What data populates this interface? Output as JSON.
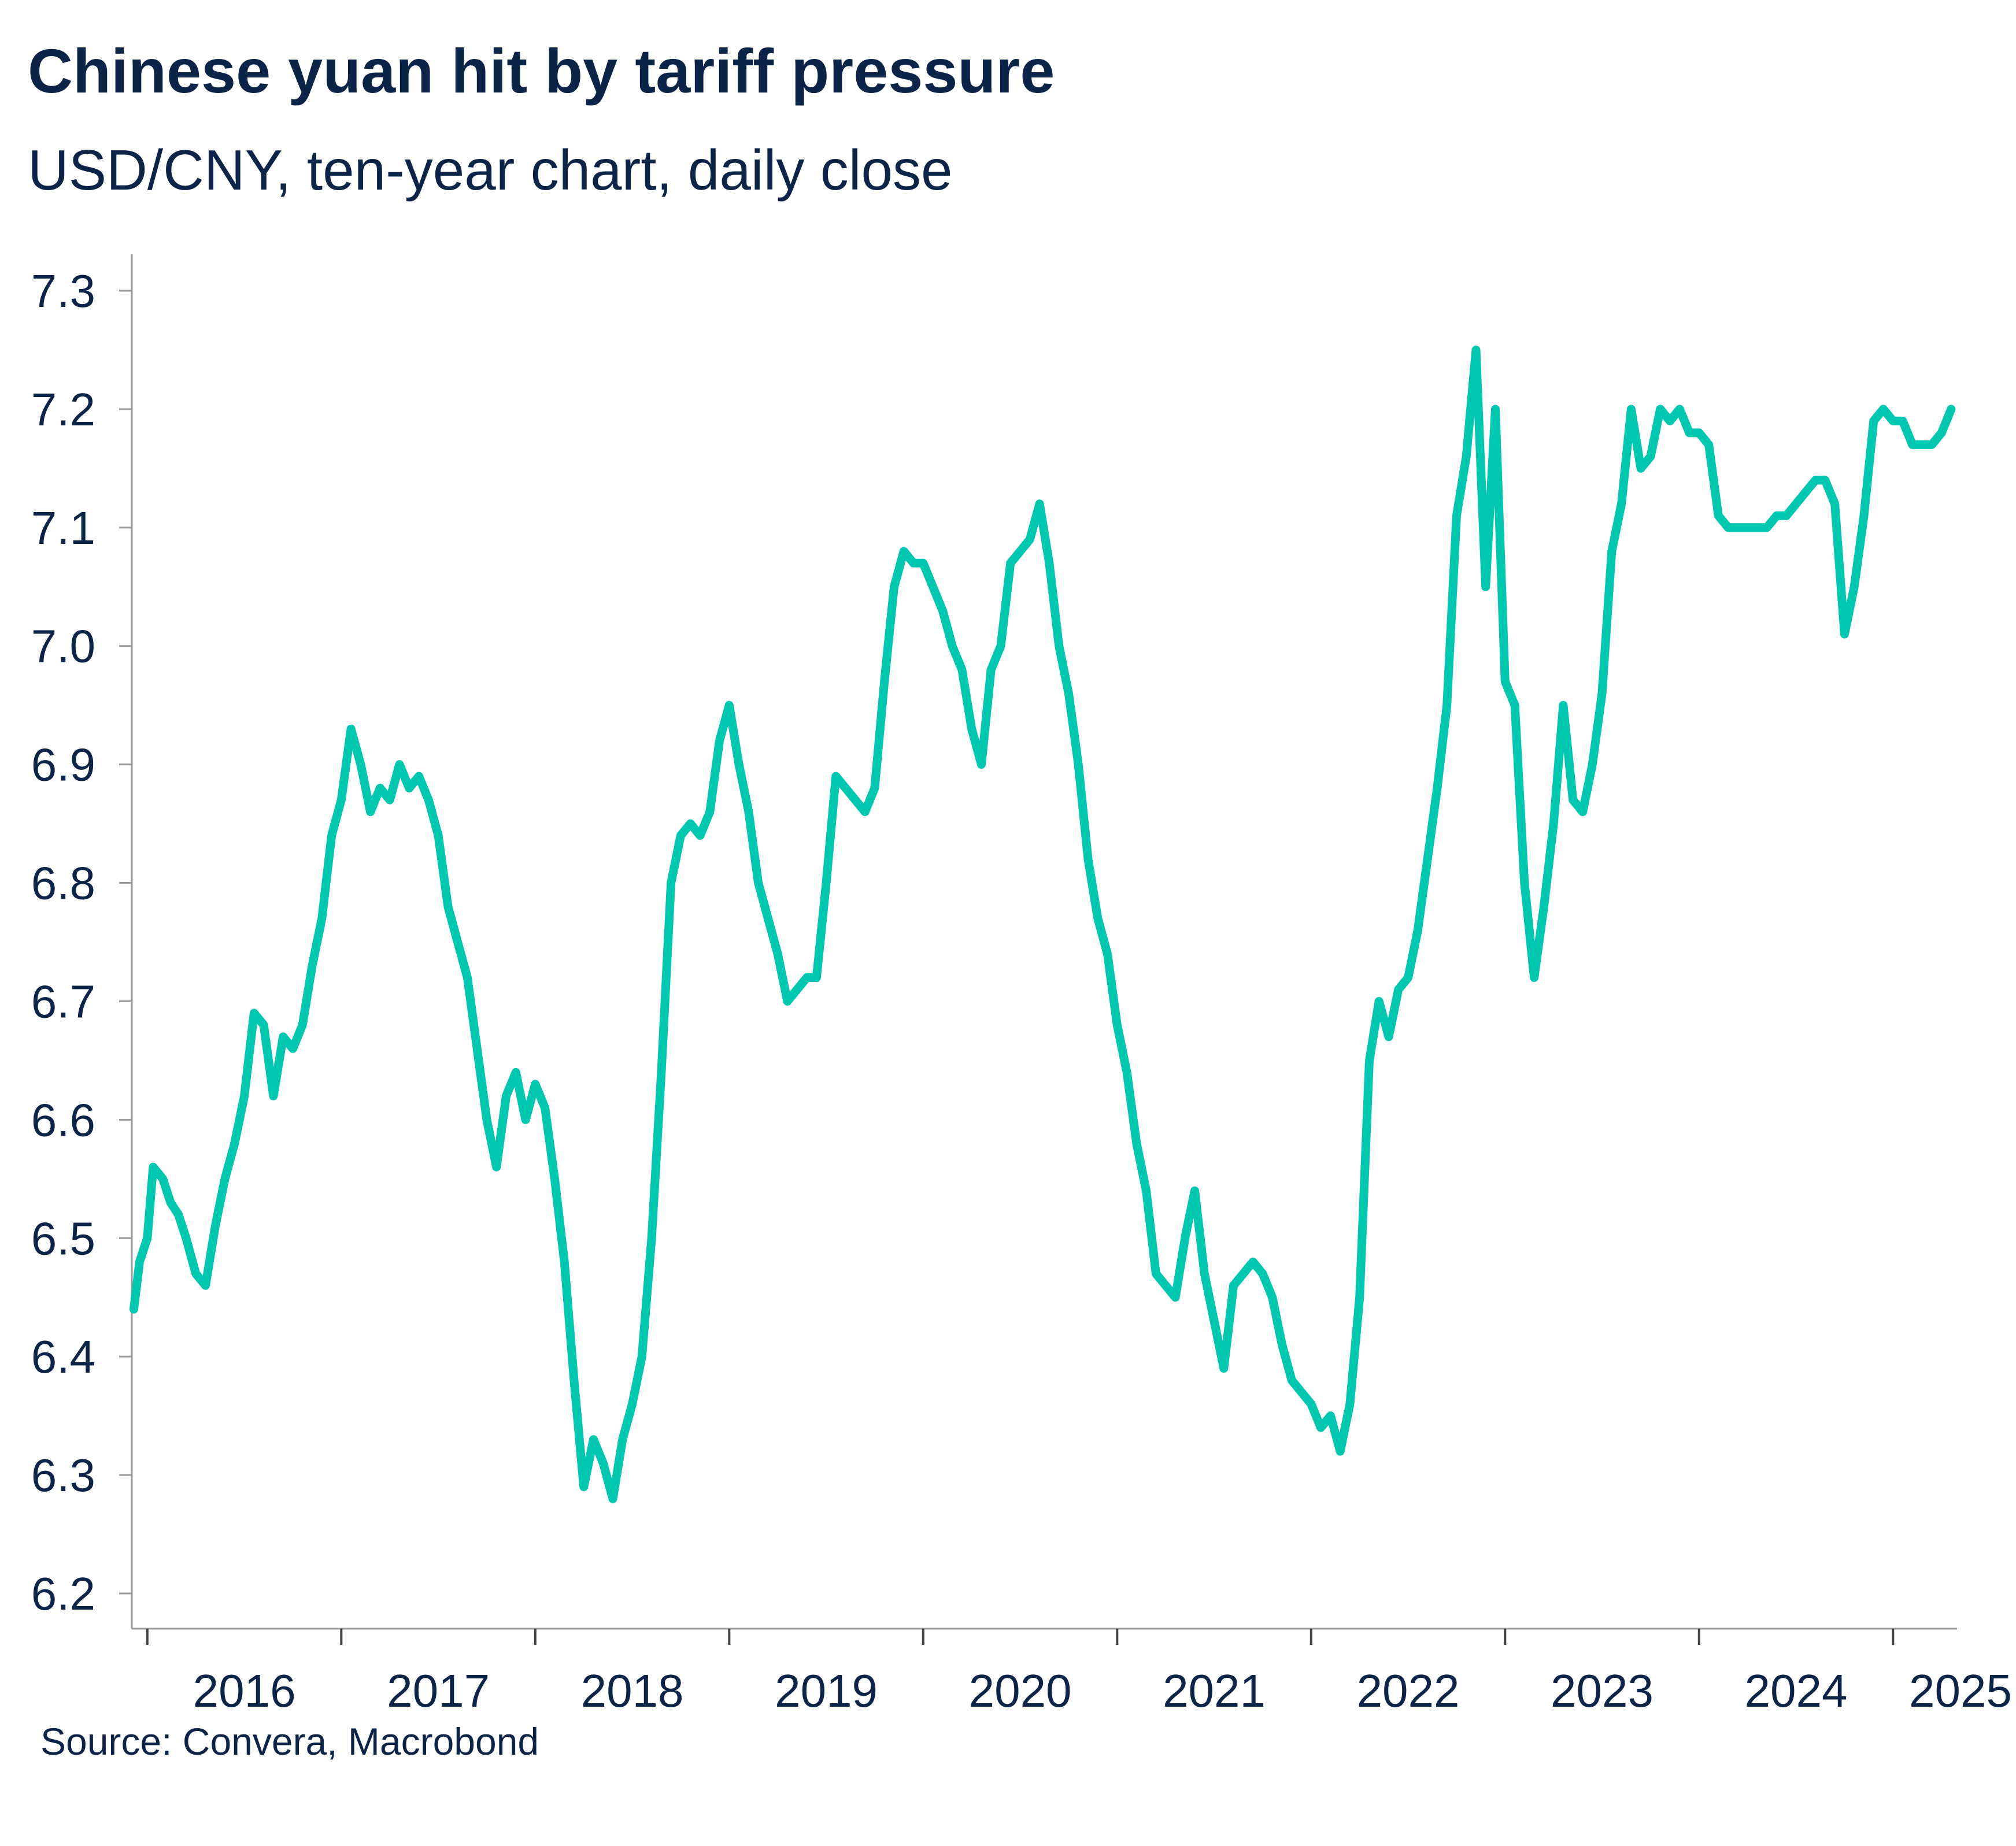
{
  "title": "Chinese yuan hit by tariff pressure",
  "subtitle": "USD/CNY, ten-year chart, daily close",
  "source": "Source: Convera, Macrobond",
  "colors": {
    "line": "#00c8b0",
    "text": "#0b2447",
    "axis": "#9a9a9a"
  },
  "chart_data": {
    "type": "line",
    "title": "Chinese yuan hit by tariff pressure",
    "subtitle": "USD/CNY, ten-year chart, daily close",
    "xlabel": "",
    "ylabel": "",
    "ylim": [
      6.2,
      7.3
    ],
    "xlim": [
      2015.92,
      2025.33
    ],
    "y_ticks": [
      "6.2",
      "6.3",
      "6.4",
      "6.5",
      "6.6",
      "6.7",
      "6.8",
      "6.9",
      "7.0",
      "7.1",
      "7.2",
      "7.3"
    ],
    "x_tick_positions": [
      2016,
      2017,
      2018,
      2019,
      2020,
      2021,
      2022,
      2023,
      2024,
      2025
    ],
    "x_ticks": [
      "2016",
      "2017",
      "2018",
      "2019",
      "2020",
      "2021",
      "2022",
      "2023",
      "2024",
      "2025"
    ],
    "grid": false,
    "legend": "none",
    "series": [
      {
        "x": [
          2015.93,
          2015.96,
          2016.0,
          2016.03,
          2016.08,
          2016.12,
          2016.16,
          2016.2,
          2016.25,
          2016.3,
          2016.35,
          2016.4,
          2016.45,
          2016.5,
          2016.55,
          2016.6,
          2016.65,
          2016.7,
          2016.75,
          2016.8,
          2016.85,
          2016.9,
          2016.95,
          2017.0,
          2017.05,
          2017.1,
          2017.15,
          2017.2,
          2017.25,
          2017.3,
          2017.35,
          2017.4,
          2017.45,
          2017.5,
          2017.55,
          2017.6,
          2017.65,
          2017.7,
          2017.75,
          2017.8,
          2017.85,
          2017.9,
          2017.95,
          2018.0,
          2018.05,
          2018.1,
          2018.15,
          2018.2,
          2018.25,
          2018.3,
          2018.35,
          2018.4,
          2018.45,
          2018.5,
          2018.55,
          2018.6,
          2018.65,
          2018.7,
          2018.75,
          2018.8,
          2018.85,
          2018.9,
          2018.95,
          2019.0,
          2019.05,
          2019.1,
          2019.15,
          2019.2,
          2019.25,
          2019.3,
          2019.35,
          2019.4,
          2019.45,
          2019.5,
          2019.55,
          2019.6,
          2019.65,
          2019.7,
          2019.75,
          2019.8,
          2019.85,
          2019.9,
          2019.95,
          2020.0,
          2020.05,
          2020.1,
          2020.15,
          2020.2,
          2020.25,
          2020.3,
          2020.35,
          2020.4,
          2020.45,
          2020.5,
          2020.55,
          2020.6,
          2020.65,
          2020.7,
          2020.75,
          2020.8,
          2020.85,
          2020.9,
          2020.95,
          2021.0,
          2021.05,
          2021.1,
          2021.15,
          2021.2,
          2021.25,
          2021.3,
          2021.35,
          2021.4,
          2021.45,
          2021.5,
          2021.55,
          2021.6,
          2021.65,
          2021.7,
          2021.75,
          2021.8,
          2021.85,
          2021.9,
          2021.95,
          2022.0,
          2022.05,
          2022.1,
          2022.15,
          2022.2,
          2022.25,
          2022.3,
          2022.35,
          2022.4,
          2022.45,
          2022.5,
          2022.55,
          2022.6,
          2022.65,
          2022.7,
          2022.75,
          2022.8,
          2022.85,
          2022.9,
          2022.95,
          2023.0,
          2023.05,
          2023.1,
          2023.15,
          2023.2,
          2023.25,
          2023.3,
          2023.35,
          2023.4,
          2023.45,
          2023.5,
          2023.55,
          2023.6,
          2023.65,
          2023.7,
          2023.75,
          2023.8,
          2023.85,
          2023.9,
          2023.95,
          2024.0,
          2024.05,
          2024.1,
          2024.15,
          2024.2,
          2024.25,
          2024.3,
          2024.35,
          2024.4,
          2024.45,
          2024.5,
          2024.55,
          2024.6,
          2024.65,
          2024.7,
          2024.75,
          2024.8,
          2024.85,
          2024.9,
          2024.95,
          2025.0,
          2025.05,
          2025.1,
          2025.15,
          2025.2,
          2025.25,
          2025.3
        ],
        "y": [
          6.44,
          6.48,
          6.5,
          6.56,
          6.55,
          6.53,
          6.52,
          6.5,
          6.47,
          6.46,
          6.51,
          6.55,
          6.58,
          6.62,
          6.69,
          6.68,
          6.62,
          6.67,
          6.66,
          6.68,
          6.73,
          6.77,
          6.84,
          6.87,
          6.93,
          6.9,
          6.86,
          6.88,
          6.87,
          6.9,
          6.88,
          6.89,
          6.87,
          6.84,
          6.78,
          6.75,
          6.72,
          6.66,
          6.6,
          6.56,
          6.62,
          6.64,
          6.6,
          6.63,
          6.61,
          6.55,
          6.48,
          6.38,
          6.29,
          6.33,
          6.31,
          6.28,
          6.33,
          6.36,
          6.4,
          6.5,
          6.64,
          6.8,
          6.84,
          6.85,
          6.84,
          6.86,
          6.92,
          6.95,
          6.9,
          6.86,
          6.8,
          6.77,
          6.74,
          6.7,
          6.71,
          6.72,
          6.72,
          6.8,
          6.89,
          6.88,
          6.87,
          6.86,
          6.88,
          6.97,
          7.05,
          7.08,
          7.07,
          7.07,
          7.05,
          7.03,
          7.0,
          6.98,
          6.93,
          6.9,
          6.98,
          7.0,
          7.07,
          7.08,
          7.09,
          7.12,
          7.07,
          7.0,
          6.96,
          6.9,
          6.82,
          6.77,
          6.74,
          6.68,
          6.64,
          6.58,
          6.54,
          6.47,
          6.46,
          6.45,
          6.5,
          6.54,
          6.47,
          6.43,
          6.39,
          6.46,
          6.47,
          6.48,
          6.47,
          6.45,
          6.41,
          6.38,
          6.37,
          6.36,
          6.34,
          6.35,
          6.32,
          6.36,
          6.45,
          6.65,
          6.7,
          6.67,
          6.71,
          6.72,
          6.76,
          6.82,
          6.88,
          6.95,
          7.11,
          7.16,
          7.25,
          7.05,
          7.2,
          6.97,
          6.95,
          6.8,
          6.72,
          6.78,
          6.85,
          6.95,
          6.87,
          6.86,
          6.9,
          6.96,
          7.08,
          7.12,
          7.2,
          7.15,
          7.16,
          7.2,
          7.19,
          7.2,
          7.18,
          7.18,
          7.17,
          7.11,
          7.1,
          7.1,
          7.1,
          7.1,
          7.1,
          7.11,
          7.11,
          7.12,
          7.13,
          7.14,
          7.14,
          7.12,
          7.01,
          7.05,
          7.11,
          7.19,
          7.2,
          7.19,
          7.19,
          7.17,
          7.17,
          7.17,
          7.18,
          7.2
        ]
      }
    ]
  }
}
